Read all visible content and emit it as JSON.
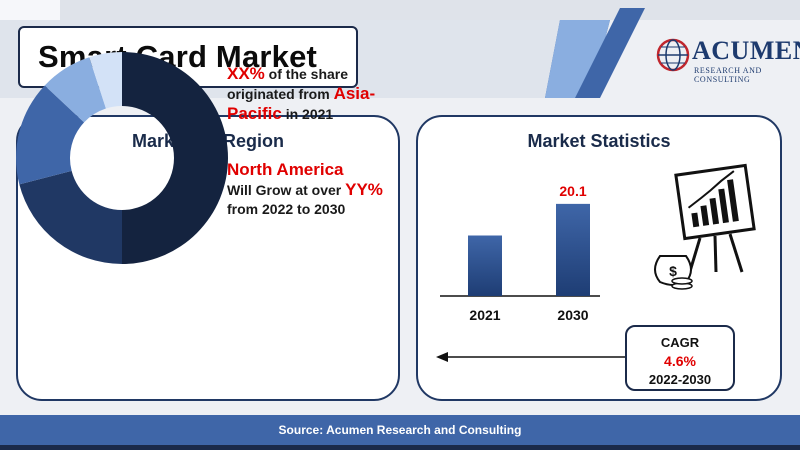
{
  "header": {
    "title": "Smart Card Market",
    "logo_brand": "ACUMEN",
    "logo_sub": "RESEARCH AND CONSULTING"
  },
  "region_panel": {
    "title": "Market By Region",
    "block1": {
      "highlight": "XX%",
      "text_a": " of the share originated from ",
      "region": "Asia-Pacific",
      "text_b": " in 2021"
    },
    "block2": {
      "region": "North America",
      "text_a": "Will Grow at over ",
      "highlight": "YY%",
      "text_b": " from 2022 to 2030"
    }
  },
  "stats_panel": {
    "title": "Market Statistics",
    "cagr_label": "CAGR",
    "cagr_value": "4.6%",
    "cagr_years": "2022-2030"
  },
  "footer": {
    "source": "Source: Acumen Research and Consulting"
  },
  "colors": {
    "navy": "#14233f",
    "dark_blue": "#203864",
    "mid_blue": "#3f66a8",
    "light_blue": "#8aaee0",
    "pale_blue": "#d3e2f7",
    "accent_red": "#e00000"
  },
  "chart_data": [
    {
      "type": "pie",
      "style": "donut",
      "values": [
        50,
        21,
        16,
        8,
        5
      ],
      "colors": [
        "#14233f",
        "#203864",
        "#3f66a8",
        "#8aaee0",
        "#d3e2f7"
      ]
    },
    {
      "type": "bar",
      "categories": [
        "2021",
        "2030"
      ],
      "values": [
        13.2,
        20.1
      ],
      "data_labels": [
        "",
        "20.1"
      ],
      "ylim": [
        0,
        24
      ]
    }
  ]
}
